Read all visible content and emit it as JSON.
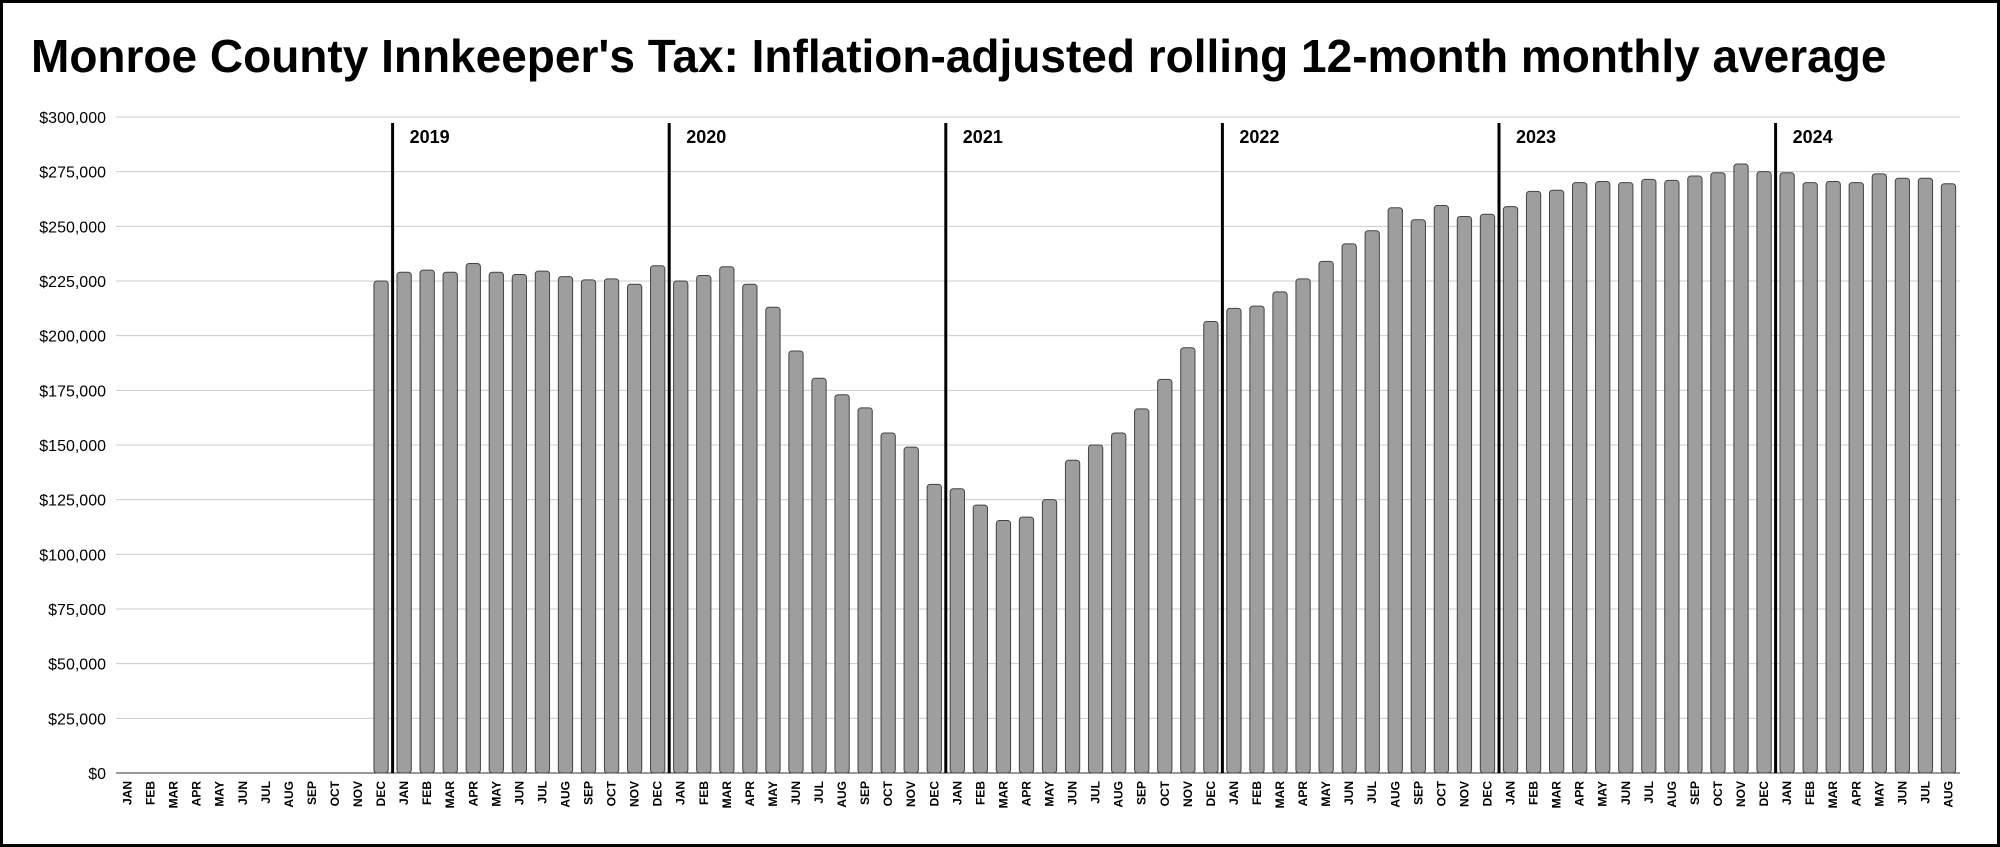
{
  "chart_data": {
    "type": "bar",
    "title": "Monroe County Innkeeper's Tax: Inflation-adjusted rolling 12-month monthly average",
    "xlabel": "",
    "ylabel": "",
    "ylim": [
      0,
      300000
    ],
    "y_ticks": [
      0,
      25000,
      50000,
      75000,
      100000,
      125000,
      150000,
      175000,
      200000,
      225000,
      250000,
      275000,
      300000
    ],
    "y_tick_labels": [
      "$0",
      "$25,000",
      "$50,000",
      "$75,000",
      "$100,000",
      "$125,000",
      "$150,000",
      "$175,000",
      "$200,000",
      "$225,000",
      "$250,000",
      "$275,000",
      "$300,000"
    ],
    "grid": true,
    "legend": "none",
    "bar_color": "#9e9e9e",
    "bar_edge_color": "#444444",
    "categories": [
      "JAN",
      "FEB",
      "MAR",
      "APR",
      "MAY",
      "JUN",
      "JUL",
      "AUG",
      "SEP",
      "OCT",
      "NOV",
      "DEC",
      "JAN",
      "FEB",
      "MAR",
      "APR",
      "MAY",
      "JUN",
      "JUL",
      "AUG",
      "SEP",
      "OCT",
      "NOV",
      "DEC",
      "JAN",
      "FEB",
      "MAR",
      "APR",
      "MAY",
      "JUN",
      "JUL",
      "AUG",
      "SEP",
      "OCT",
      "NOV",
      "DEC",
      "JAN",
      "FEB",
      "MAR",
      "APR",
      "MAY",
      "JUN",
      "JUL",
      "AUG",
      "SEP",
      "OCT",
      "NOV",
      "DEC",
      "JAN",
      "FEB",
      "MAR",
      "APR",
      "MAY",
      "JUN",
      "JUL",
      "AUG",
      "SEP",
      "OCT",
      "NOV",
      "DEC",
      "JAN",
      "FEB",
      "MAR",
      "APR",
      "MAY",
      "JUN",
      "JUL",
      "AUG",
      "SEP",
      "OCT",
      "NOV",
      "DEC",
      "JAN",
      "FEB",
      "MAR",
      "APR",
      "MAY",
      "JUN",
      "JUL",
      "AUG"
    ],
    "values": [
      null,
      null,
      null,
      null,
      null,
      null,
      null,
      null,
      null,
      null,
      null,
      225000,
      229000,
      230000,
      229000,
      233000,
      229000,
      228000,
      229500,
      227000,
      225500,
      226000,
      223500,
      232000,
      225000,
      227500,
      231500,
      223500,
      213000,
      193000,
      180500,
      173000,
      167000,
      155500,
      149000,
      132000,
      130000,
      122500,
      115500,
      117000,
      125000,
      143000,
      150000,
      155500,
      166500,
      180000,
      194500,
      206500,
      212500,
      213500,
      220000,
      226000,
      234000,
      242000,
      248000,
      258500,
      253000,
      259500,
      254500,
      255500,
      259000,
      266000,
      266500,
      270000,
      270500,
      270000,
      271500,
      271000,
      273000,
      274500,
      278500,
      275000,
      274500,
      270000,
      270500,
      270000,
      274000,
      272000,
      272000,
      269500
    ],
    "year_markers": [
      {
        "label": "2019",
        "index": 12
      },
      {
        "label": "2020",
        "index": 24
      },
      {
        "label": "2021",
        "index": 36
      },
      {
        "label": "2022",
        "index": 48
      },
      {
        "label": "2023",
        "index": 60
      },
      {
        "label": "2024",
        "index": 72
      }
    ]
  }
}
